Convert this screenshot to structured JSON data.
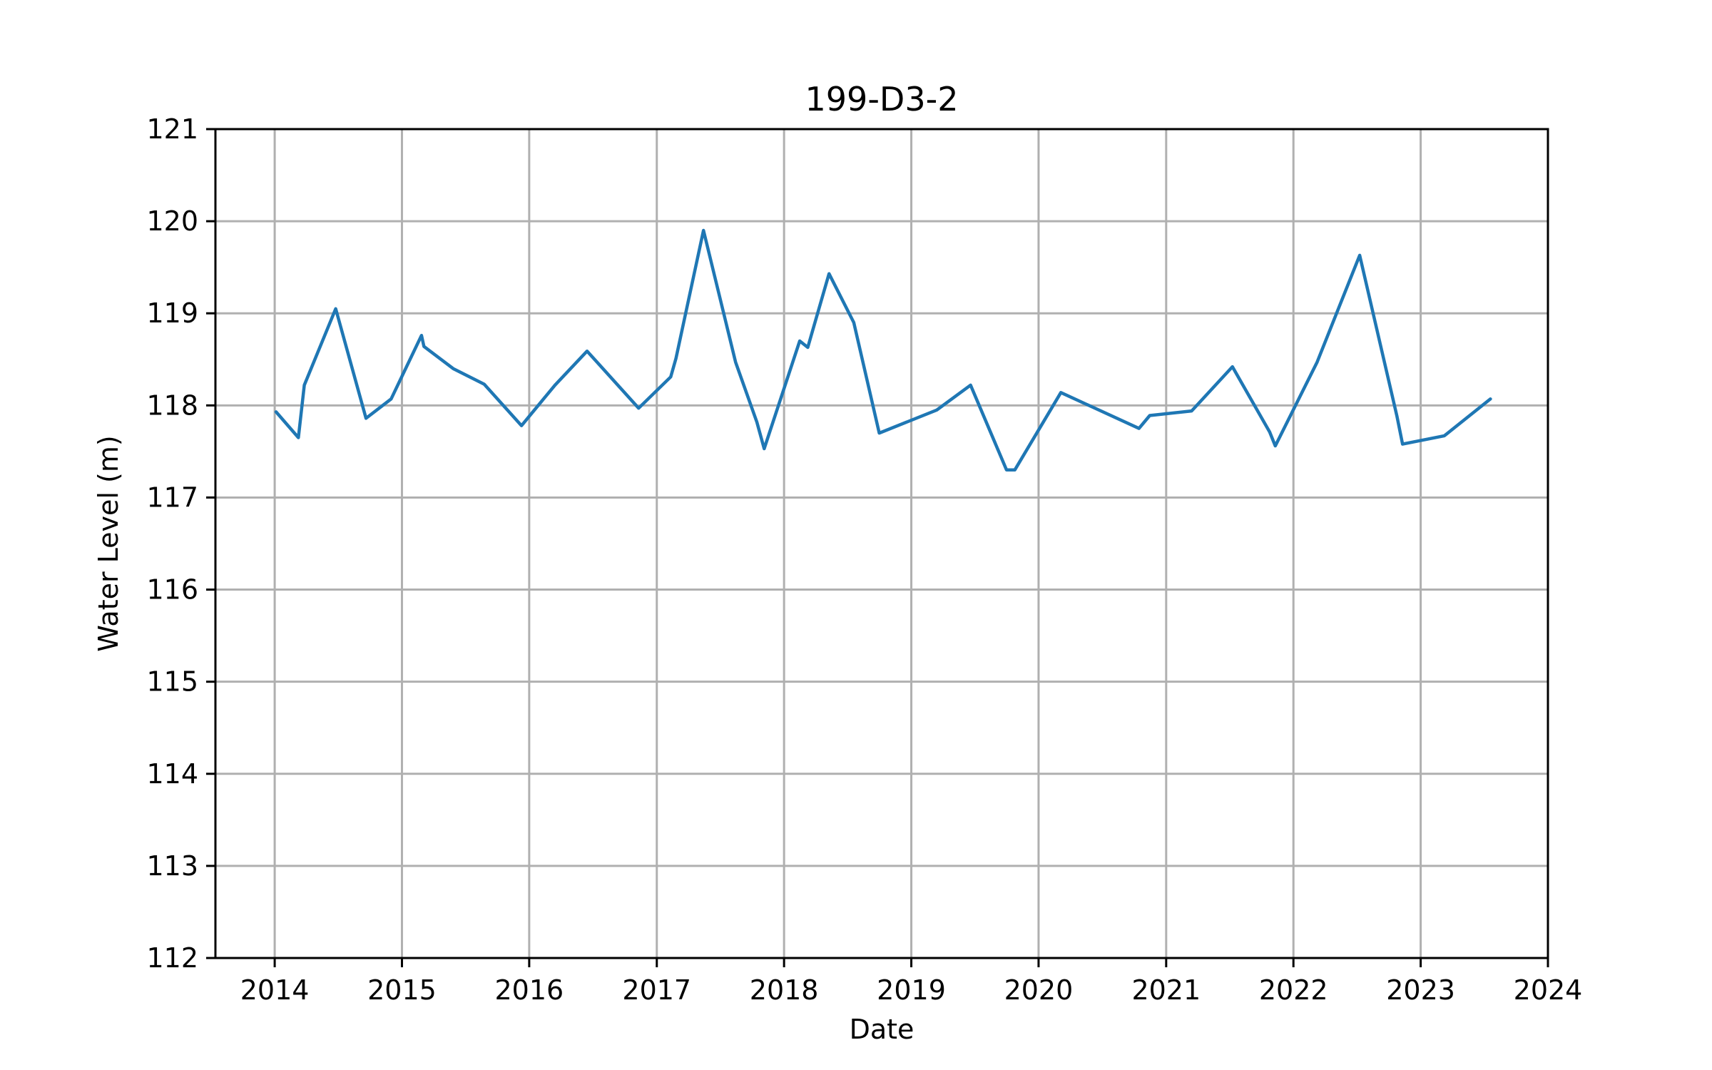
{
  "chart_data": {
    "type": "line",
    "title": "199-D3-2",
    "xlabel": "Date",
    "ylabel": "Water Level (m)",
    "xlim": [
      "2013-07-15",
      "2024-01-01"
    ],
    "ylim": [
      112,
      121
    ],
    "grid": true,
    "x_ticks": [
      "2014",
      "2015",
      "2016",
      "2017",
      "2018",
      "2019",
      "2020",
      "2021",
      "2022",
      "2023",
      "2024"
    ],
    "y_ticks": [
      "112",
      "113",
      "114",
      "115",
      "116",
      "117",
      "118",
      "119",
      "120",
      "121"
    ],
    "colors": {
      "line": "#1f77b4",
      "grid": "#b0b0b0"
    },
    "series": [
      {
        "x": [
          "2014-01-05",
          "2014-03-10",
          "2014-03-27",
          "2014-06-25",
          "2014-09-20",
          "2014-12-01",
          "2015-02-26",
          "2015-03-05",
          "2015-05-28",
          "2015-08-25",
          "2015-12-10",
          "2016-03-15",
          "2016-06-15",
          "2016-11-10",
          "2017-02-10",
          "2017-02-25",
          "2017-05-15",
          "2017-08-15",
          "2017-10-15",
          "2017-11-05",
          "2018-02-15",
          "2018-03-10",
          "2018-05-10",
          "2018-07-20",
          "2018-10-01",
          "2019-03-15",
          "2019-06-20",
          "2019-10-01",
          "2019-10-25",
          "2020-03-05",
          "2020-10-15",
          "2020-11-15",
          "2021-03-15",
          "2021-07-10",
          "2021-10-25",
          "2021-11-10",
          "2022-03-10",
          "2022-07-10",
          "2022-10-25",
          "2022-11-10",
          "2023-03-10",
          "2023-07-20"
        ],
        "y": [
          117.93,
          117.65,
          118.22,
          119.05,
          117.86,
          118.07,
          118.76,
          118.64,
          118.4,
          118.23,
          117.78,
          118.22,
          118.59,
          117.97,
          118.31,
          118.51,
          119.9,
          118.47,
          117.82,
          117.53,
          118.7,
          118.63,
          119.43,
          118.9,
          117.7,
          117.95,
          118.22,
          117.3,
          117.3,
          118.14,
          117.75,
          117.89,
          117.94,
          118.42,
          117.71,
          117.56,
          118.47,
          119.63,
          117.88,
          117.58,
          117.67,
          118.07
        ]
      }
    ]
  }
}
